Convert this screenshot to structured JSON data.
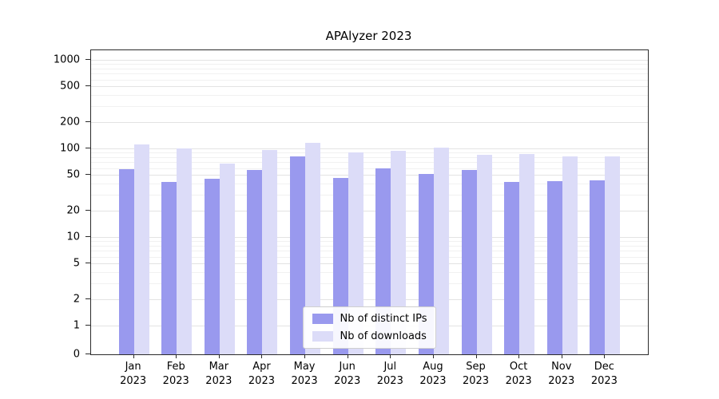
{
  "chart_data": {
    "type": "bar",
    "title": "APAlyzer 2023",
    "year": "2023",
    "categories": [
      "Jan",
      "Feb",
      "Mar",
      "Apr",
      "May",
      "Jun",
      "Jul",
      "Aug",
      "Sep",
      "Oct",
      "Nov",
      "Dec"
    ],
    "series": [
      {
        "key": "distinct-ips",
        "name": "Nb of distinct IPs",
        "color": "#9999ee",
        "values": [
          58,
          42,
          45,
          57,
          82,
          46,
          60,
          51,
          57,
          42,
          43,
          44
        ]
      },
      {
        "key": "downloads",
        "name": "Nb of downloads",
        "color": "#dcdcf8",
        "values": [
          110,
          100,
          68,
          96,
          115,
          90,
          93,
          103,
          84,
          87,
          82,
          82
        ]
      }
    ],
    "y_ticks": [
      0,
      1,
      2,
      5,
      10,
      20,
      50,
      100,
      200,
      500,
      1000
    ],
    "y_scale": "symlog",
    "ylim": [
      0,
      2000
    ],
    "xlabel": "",
    "ylabel": "",
    "grid": "both-horizontal",
    "legend_position": "lower center"
  }
}
